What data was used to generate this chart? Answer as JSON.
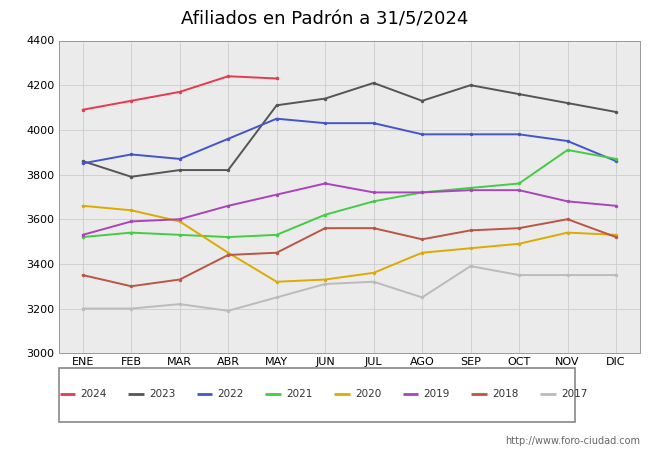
{
  "title": "Afiliados en Padrón a 31/5/2024",
  "header_color": "#5599dd",
  "months": [
    "ENE",
    "FEB",
    "MAR",
    "ABR",
    "MAY",
    "JUN",
    "JUL",
    "AGO",
    "SEP",
    "OCT",
    "NOV",
    "DIC"
  ],
  "series_order": [
    "2024",
    "2023",
    "2022",
    "2021",
    "2020",
    "2019",
    "2018",
    "2017"
  ],
  "series": {
    "2024": {
      "color": "#e8394e",
      "data": [
        4090,
        4130,
        4170,
        4240,
        4230,
        null,
        null,
        null,
        null,
        null,
        null,
        null
      ]
    },
    "2023": {
      "color": "#555555",
      "data": [
        3860,
        3790,
        3820,
        3820,
        4110,
        4140,
        4210,
        4130,
        4200,
        4160,
        4120,
        4080
      ]
    },
    "2022": {
      "color": "#4455cc",
      "data": [
        3850,
        3890,
        3870,
        3960,
        4050,
        4030,
        4030,
        3980,
        3980,
        3980,
        3950,
        3860
      ]
    },
    "2021": {
      "color": "#44cc44",
      "data": [
        3520,
        3540,
        3530,
        3520,
        3530,
        3620,
        3680,
        3720,
        3740,
        3760,
        3910,
        3870
      ]
    },
    "2020": {
      "color": "#ddaa00",
      "data": [
        3660,
        3640,
        3590,
        3450,
        3320,
        3330,
        3360,
        3450,
        3470,
        3490,
        3540,
        3530
      ]
    },
    "2019": {
      "color": "#aa44bb",
      "data": [
        3530,
        3590,
        3600,
        3660,
        3710,
        3760,
        3720,
        3720,
        3730,
        3730,
        3680,
        3660
      ]
    },
    "2018": {
      "color": "#bb5544",
      "data": [
        3350,
        3300,
        3330,
        3440,
        3450,
        3560,
        3560,
        3510,
        3550,
        3560,
        3600,
        3520
      ]
    },
    "2017": {
      "color": "#bbbbbb",
      "data": [
        3200,
        3200,
        3220,
        3190,
        3250,
        3310,
        3320,
        3250,
        3390,
        3350,
        3350,
        3350
      ]
    }
  },
  "ylim": [
    3000,
    4400
  ],
  "yticks": [
    3000,
    3200,
    3400,
    3600,
    3800,
    4000,
    4200,
    4400
  ],
  "watermark": "http://www.foro-ciudad.com"
}
